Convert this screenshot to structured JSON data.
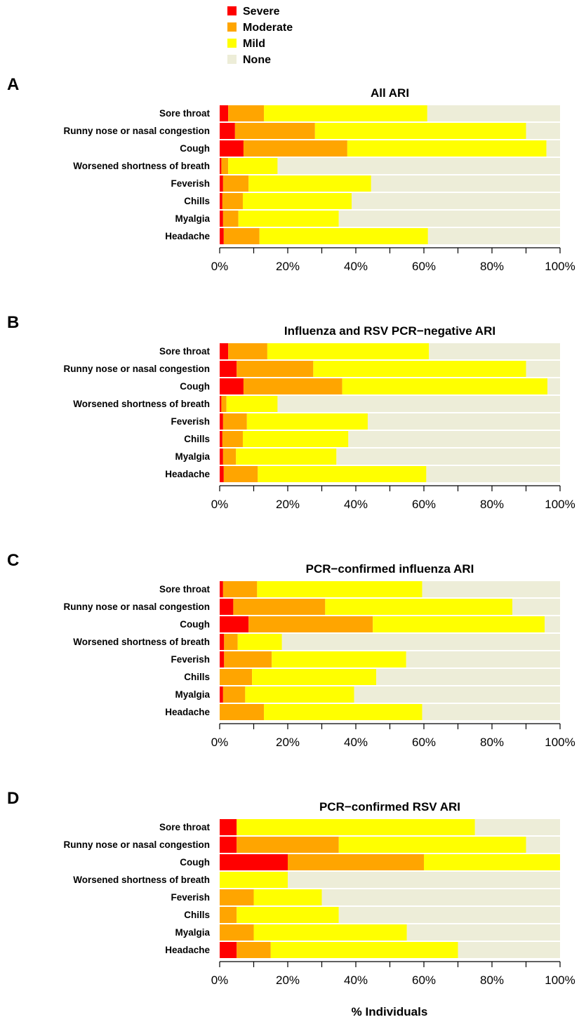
{
  "legend": {
    "items": [
      {
        "label": "Severe",
        "color": "#ff0000"
      },
      {
        "label": "Moderate",
        "color": "#ffa500"
      },
      {
        "label": "Mild",
        "color": "#ffff00"
      },
      {
        "label": "None",
        "color": "#ededd8"
      }
    ]
  },
  "xlabel": "% Individuals",
  "chart_data": [
    {
      "type": "bar",
      "orientation": "horizontal",
      "stacked": true,
      "panel_label": "A",
      "title": "All ARI",
      "categories": [
        "Sore throat",
        "Runny nose or nasal congestion",
        "Cough",
        "Worsened shortness of breath",
        "Feverish",
        "Chills",
        "Myalgia",
        "Headache"
      ],
      "series": [
        {
          "name": "Severe",
          "values": [
            2.5,
            4.5,
            7,
            0.5,
            1,
            0.8,
            1,
            1.2
          ]
        },
        {
          "name": "Moderate",
          "values": [
            10.5,
            23.5,
            30.5,
            2,
            7.5,
            6,
            4.5,
            10.5
          ]
        },
        {
          "name": "Mild",
          "values": [
            48,
            62,
            58.5,
            14.5,
            36,
            32,
            29.5,
            49.5
          ]
        },
        {
          "name": "None",
          "values": [
            39,
            10,
            4,
            83,
            55.5,
            61.2,
            65,
            38.8
          ]
        }
      ],
      "xticks": [
        "0%",
        "20%",
        "40%",
        "60%",
        "80%",
        "100%"
      ],
      "xlim": [
        0,
        100
      ]
    },
    {
      "type": "bar",
      "orientation": "horizontal",
      "stacked": true,
      "panel_label": "B",
      "title": "Influenza and RSV PCR−negative ARI",
      "categories": [
        "Sore throat",
        "Runny nose or nasal congestion",
        "Cough",
        "Worsened shortness of breath",
        "Feverish",
        "Chills",
        "Myalgia",
        "Headache"
      ],
      "series": [
        {
          "name": "Severe",
          "values": [
            2.5,
            5,
            7,
            0.5,
            1,
            0.8,
            1,
            1.2
          ]
        },
        {
          "name": "Moderate",
          "values": [
            11.5,
            22.5,
            29,
            1.5,
            7,
            6,
            3.8,
            10
          ]
        },
        {
          "name": "Mild",
          "values": [
            47.5,
            62.5,
            60.3,
            15,
            35.5,
            31,
            29.5,
            49.5
          ]
        },
        {
          "name": "None",
          "values": [
            38.5,
            10,
            3.7,
            83,
            56.5,
            62.2,
            65.7,
            39.3
          ]
        }
      ],
      "xticks": [
        "0%",
        "20%",
        "40%",
        "60%",
        "80%",
        "100%"
      ],
      "xlim": [
        0,
        100
      ]
    },
    {
      "type": "bar",
      "orientation": "horizontal",
      "stacked": true,
      "panel_label": "C",
      "title": "PCR−confirmed influenza ARI",
      "categories": [
        "Sore throat",
        "Runny nose or nasal congestion",
        "Cough",
        "Worsened shortness of breath",
        "Feverish",
        "Chills",
        "Myalgia",
        "Headache"
      ],
      "series": [
        {
          "name": "Severe",
          "values": [
            1,
            4,
            8.5,
            1.3,
            1.3,
            0,
            1,
            0
          ]
        },
        {
          "name": "Moderate",
          "values": [
            10,
            27,
            36.5,
            4,
            14,
            9.5,
            6.5,
            13
          ]
        },
        {
          "name": "Mild",
          "values": [
            48.5,
            55,
            50.5,
            13,
            39.5,
            36.5,
            32,
            46.5
          ]
        },
        {
          "name": "None",
          "values": [
            40.5,
            14,
            4.5,
            81.7,
            45.2,
            54,
            60.5,
            40.5
          ]
        }
      ],
      "xticks": [
        "0%",
        "20%",
        "40%",
        "60%",
        "80%",
        "100%"
      ],
      "xlim": [
        0,
        100
      ]
    },
    {
      "type": "bar",
      "orientation": "horizontal",
      "stacked": true,
      "panel_label": "D",
      "title": "PCR−confirmed RSV ARI",
      "categories": [
        "Sore throat",
        "Runny nose or nasal congestion",
        "Cough",
        "Worsened shortness of breath",
        "Feverish",
        "Chills",
        "Myalgia",
        "Headache"
      ],
      "series": [
        {
          "name": "Severe",
          "values": [
            5,
            5,
            20,
            0,
            0,
            0,
            0,
            5
          ]
        },
        {
          "name": "Moderate",
          "values": [
            0,
            30,
            40,
            0,
            10,
            5,
            10,
            10
          ]
        },
        {
          "name": "Mild",
          "values": [
            70,
            55,
            40,
            20,
            20,
            30,
            45,
            55
          ]
        },
        {
          "name": "None",
          "values": [
            25,
            10,
            0,
            80,
            70,
            65,
            45,
            30
          ]
        }
      ],
      "xticks": [
        "0%",
        "20%",
        "40%",
        "60%",
        "80%",
        "100%"
      ],
      "xlim": [
        0,
        100
      ]
    }
  ]
}
